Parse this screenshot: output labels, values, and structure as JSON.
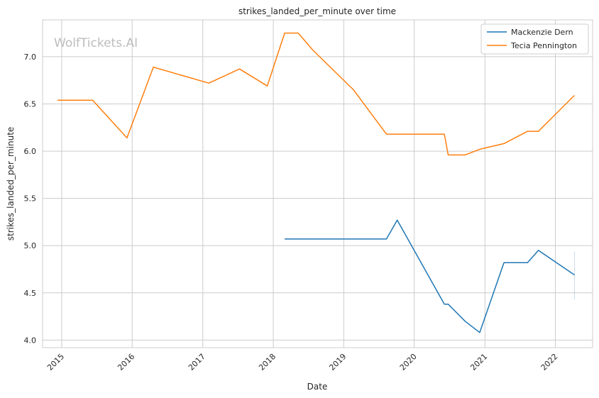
{
  "chart_data": {
    "type": "line",
    "title": "strikes_landed_per_minute over time",
    "xlabel": "Date",
    "ylabel": "strikes_landed_per_minute",
    "watermark": "WolfTickets.AI",
    "xlim": [
      "2014-09-24",
      "2022-07-13"
    ],
    "ylim": [
      3.92,
      7.39
    ],
    "x_ticks": [
      "2015",
      "2016",
      "2017",
      "2018",
      "2019",
      "2020",
      "2021",
      "2022"
    ],
    "y_ticks": [
      "4.0",
      "4.5",
      "5.0",
      "5.5",
      "6.0",
      "6.5",
      "7.0"
    ],
    "grid": true,
    "legend_position": "top-right",
    "series": [
      {
        "name": "Mackenzie Dern",
        "color": "#1f77b4",
        "points": [
          {
            "x": "2018-03-01",
            "y": 5.07
          },
          {
            "x": "2019-08-10",
            "y": 5.07
          },
          {
            "x": "2019-10-05",
            "y": 5.27
          },
          {
            "x": "2020-06-05",
            "y": 4.38
          },
          {
            "x": "2020-06-25",
            "y": 4.38
          },
          {
            "x": "2020-09-20",
            "y": 4.2
          },
          {
            "x": "2020-12-05",
            "y": 4.08
          },
          {
            "x": "2021-04-10",
            "y": 4.82
          },
          {
            "x": "2021-08-10",
            "y": 4.82
          },
          {
            "x": "2021-10-05",
            "y": 4.95
          },
          {
            "x": "2022-04-10",
            "y": 4.69
          }
        ]
      },
      {
        "name": "Tecia Pennington",
        "color": "#ff7f0e",
        "points": [
          {
            "x": "2014-12-10",
            "y": 6.54
          },
          {
            "x": "2015-06-10",
            "y": 6.54
          },
          {
            "x": "2015-12-05",
            "y": 6.14
          },
          {
            "x": "2016-04-20",
            "y": 6.89
          },
          {
            "x": "2017-02-01",
            "y": 6.72
          },
          {
            "x": "2017-07-10",
            "y": 6.87
          },
          {
            "x": "2017-12-01",
            "y": 6.69
          },
          {
            "x": "2018-03-01",
            "y": 7.25
          },
          {
            "x": "2018-05-10",
            "y": 7.25
          },
          {
            "x": "2018-07-25",
            "y": 7.07
          },
          {
            "x": "2019-02-20",
            "y": 6.65
          },
          {
            "x": "2019-08-10",
            "y": 6.18
          },
          {
            "x": "2020-06-05",
            "y": 6.18
          },
          {
            "x": "2020-06-25",
            "y": 5.96
          },
          {
            "x": "2020-09-20",
            "y": 5.96
          },
          {
            "x": "2020-12-05",
            "y": 6.02
          },
          {
            "x": "2021-04-10",
            "y": 6.08
          },
          {
            "x": "2021-08-10",
            "y": 6.21
          },
          {
            "x": "2021-10-05",
            "y": 6.21
          },
          {
            "x": "2022-04-10",
            "y": 6.59
          }
        ]
      }
    ],
    "errorbar": {
      "x": "2022-04-10",
      "low": 4.43,
      "high": 4.94,
      "color": "#1f77b4"
    }
  }
}
